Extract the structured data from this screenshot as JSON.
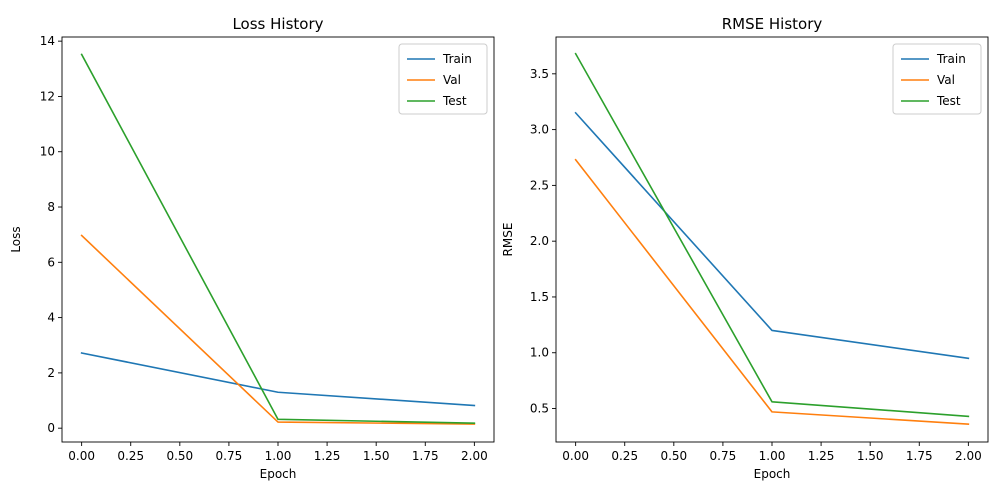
{
  "chart_data": [
    {
      "type": "line",
      "title": "Loss History",
      "xlabel": "Epoch",
      "ylabel": "Loss",
      "x": [
        0,
        1,
        2
      ],
      "xlim": [
        -0.1,
        2.1
      ],
      "ylim": [
        -0.5,
        14.15
      ],
      "xticks": [
        0.0,
        0.25,
        0.5,
        0.75,
        1.0,
        1.25,
        1.5,
        1.75,
        2.0
      ],
      "xtick_labels": [
        "0.00",
        "0.25",
        "0.50",
        "0.75",
        "1.00",
        "1.25",
        "1.50",
        "1.75",
        "2.00"
      ],
      "yticks": [
        0,
        2,
        4,
        6,
        8,
        10,
        12,
        14
      ],
      "ytick_labels": [
        "0",
        "2",
        "4",
        "6",
        "8",
        "10",
        "12",
        "14"
      ],
      "grid": false,
      "legend": "top-right",
      "series": [
        {
          "name": "Train",
          "color": "#1f77b4",
          "values": [
            2.72,
            1.3,
            0.82
          ]
        },
        {
          "name": "Val",
          "color": "#ff7f0e",
          "values": [
            6.97,
            0.22,
            0.15
          ]
        },
        {
          "name": "Test",
          "color": "#2ca02c",
          "values": [
            13.52,
            0.32,
            0.18
          ]
        }
      ]
    },
    {
      "type": "line",
      "title": "RMSE History",
      "xlabel": "Epoch",
      "ylabel": "RMSE",
      "x": [
        0,
        1,
        2
      ],
      "xlim": [
        -0.1,
        2.1
      ],
      "ylim": [
        0.2,
        3.83
      ],
      "xticks": [
        0.0,
        0.25,
        0.5,
        0.75,
        1.0,
        1.25,
        1.5,
        1.75,
        2.0
      ],
      "xtick_labels": [
        "0.00",
        "0.25",
        "0.50",
        "0.75",
        "1.00",
        "1.25",
        "1.50",
        "1.75",
        "2.00"
      ],
      "yticks": [
        0.5,
        1.0,
        1.5,
        2.0,
        2.5,
        3.0,
        3.5
      ],
      "ytick_labels": [
        "0.5",
        "1.0",
        "1.5",
        "2.0",
        "2.5",
        "3.0",
        "3.5"
      ],
      "grid": false,
      "legend": "top-right",
      "series": [
        {
          "name": "Train",
          "color": "#1f77b4",
          "values": [
            3.15,
            1.2,
            0.95
          ]
        },
        {
          "name": "Val",
          "color": "#ff7f0e",
          "values": [
            2.73,
            0.47,
            0.36
          ]
        },
        {
          "name": "Test",
          "color": "#2ca02c",
          "values": [
            3.68,
            0.56,
            0.43
          ]
        }
      ]
    }
  ]
}
